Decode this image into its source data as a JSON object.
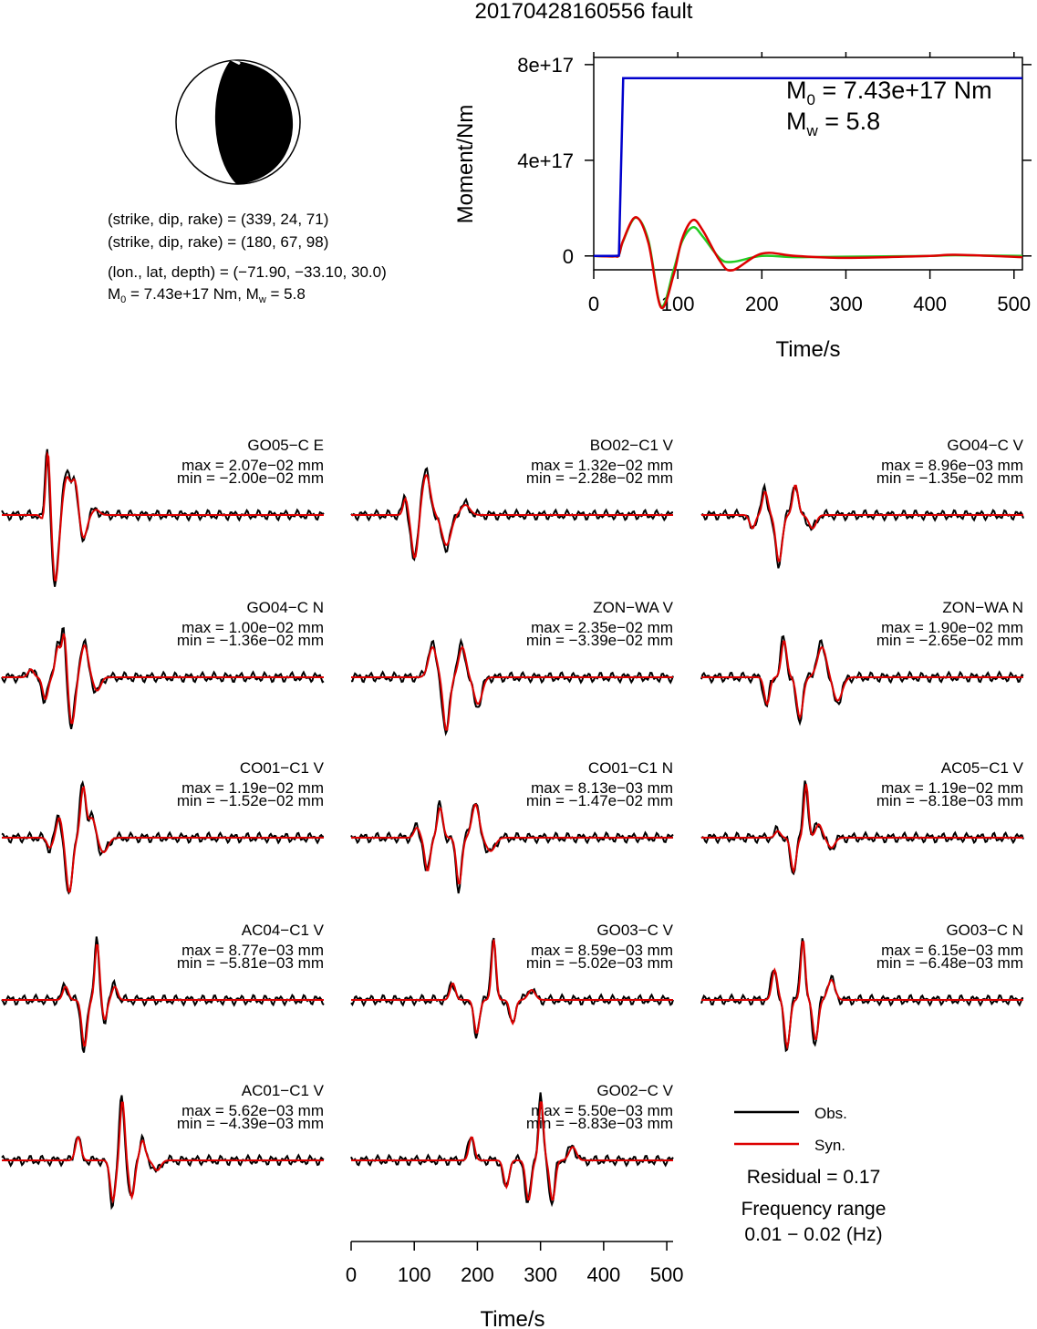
{
  "title": "20170428160556 fault",
  "info": {
    "np1": "(strike, dip, rake) = (339, 24, 71)",
    "np2": "(strike, dip, rake) = (180, 67, 98)",
    "loc": "(lon., lat, depth) = (−71.90, −33.10, 30.0)",
    "m0_prefix": "M",
    "m0_sub": "0",
    "m0_rest": " = 7.43e+17 Nm, M",
    "mw_sub": "w",
    "mw_rest": " = 5.8"
  },
  "moment_plot": {
    "ylabel": "Moment/Nm",
    "xlabel": "Time/s",
    "yticks": [
      "0",
      "4e+17",
      "8e+17"
    ],
    "xticks": [
      "0",
      "100",
      "200",
      "300",
      "400",
      "500"
    ],
    "m0_prefix": "M",
    "m0_sub": "0",
    "m0_rest": " = 7.43e+17 Nm",
    "mw_prefix": "M",
    "mw_sub": "w",
    "mw_rest": " = 5.8"
  },
  "legend": {
    "obs": "Obs.",
    "syn": "Syn.",
    "residual": "Residual = 0.17",
    "freq_title": "Frequency range",
    "freq_value": "0.01 − 0.02 (Hz)"
  },
  "waveform_axis": {
    "xlabel": "Time/s",
    "xticks": [
      "0",
      "100",
      "200",
      "300",
      "400",
      "500"
    ]
  },
  "colors": {
    "observed": "#000000",
    "synthetic": "#dd0000",
    "cumulative_moment": "#0000cc",
    "moment_rate_green": "#22cc22",
    "beachball_fill": "#000000"
  },
  "traces": [
    {
      "name": "GO05−C E",
      "max": "max = 2.07e−02 mm",
      "min": "min = −2.00e−02 mm"
    },
    {
      "name": "BO02−C1 V",
      "max": "max = 1.32e−02 mm",
      "min": "min = −2.28e−02 mm"
    },
    {
      "name": "GO04−C V",
      "max": "max = 8.96e−03 mm",
      "min": "min = −1.35e−02 mm"
    },
    {
      "name": "GO04−C N",
      "max": "max = 1.00e−02 mm",
      "min": "min = −1.36e−02 mm"
    },
    {
      "name": "ZON−WA V",
      "max": "max = 2.35e−02 mm",
      "min": "min = −3.39e−02 mm"
    },
    {
      "name": "ZON−WA N",
      "max": "max = 1.90e−02 mm",
      "min": "min = −2.65e−02 mm"
    },
    {
      "name": "CO01−C1 V",
      "max": "max = 1.19e−02 mm",
      "min": "min = −1.52e−02 mm"
    },
    {
      "name": "CO01−C1 N",
      "max": "max = 8.13e−03 mm",
      "min": "min = −1.47e−02 mm"
    },
    {
      "name": "AC05−C1 V",
      "max": "max = 1.19e−02 mm",
      "min": "min = −8.18e−03 mm"
    },
    {
      "name": "AC04−C1 V",
      "max": "max = 8.77e−03 mm",
      "min": "min = −5.81e−03 mm"
    },
    {
      "name": "GO03−C V",
      "max": "max = 8.59e−03 mm",
      "min": "min = −5.02e−03 mm"
    },
    {
      "name": "GO03−C N",
      "max": "max = 6.15e−03 mm",
      "min": "min = −6.48e−03 mm"
    },
    {
      "name": "AC01−C1 V",
      "max": "max = 5.62e−03 mm",
      "min": "min = −4.39e−03 mm"
    },
    {
      "name": "GO02−C V",
      "max": "max = 5.50e−03 mm",
      "min": "min = −8.83e−03 mm"
    }
  ],
  "chart_data": [
    {
      "type": "line",
      "ylabel": "Moment/Nm",
      "xlabel": "Time/s",
      "xlim": [
        0,
        510
      ],
      "ylim": [
        -5.8e+16,
        8.3e+17
      ],
      "x": [
        0,
        25,
        30,
        35,
        50,
        65,
        80,
        95,
        105,
        118,
        130,
        150,
        165,
        200,
        240,
        300,
        400,
        430,
        510
      ],
      "series": [
        {
          "values": [
            0,
            0,
            1000000000000000.0,
            7.43e+17,
            7.43e+17,
            7.43e+17,
            7.43e+17,
            7.43e+17,
            7.43e+17,
            7.43e+17,
            7.43e+17,
            7.43e+17,
            7.43e+17,
            7.43e+17,
            7.43e+17,
            7.43e+17,
            7.43e+17,
            7.43e+17,
            7.43e+17
          ]
        },
        {
          "values": [
            0,
            -2000000000000000.0,
            4000000000000000.0,
            6.5e+16,
            1.62e+17,
            5.5e+16,
            -2.15e+17,
            -8e+16,
            7e+16,
            1.5e+17,
            1.05e+17,
            -2e+16,
            -6e+16,
            1e+16,
            0,
            -8000000000000000.0,
            0,
            5000000000000000.0,
            -5000000000000000.0
          ]
        },
        {
          "values": [
            0,
            -2000000000000000.0,
            4000000000000000.0,
            6.3e+16,
            1.6e+17,
            6.5e+16,
            -2.1e+17,
            -6e+16,
            6e+16,
            1.2e+17,
            8e+16,
            -1e+16,
            -2.5e+16,
            0,
            -5000000000000000.0,
            -3000000000000000.0,
            0,
            3000000000000000.0,
            0
          ]
        }
      ]
    }
  ]
}
